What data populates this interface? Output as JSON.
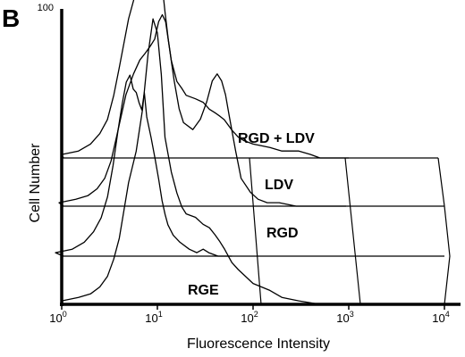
{
  "panel_letter": "B",
  "chart_data": {
    "type": "line",
    "style": "offset 3D stacked histograms",
    "xlabel": "Fluorescence Intensity",
    "ylabel": "Cell Number",
    "x_scale": "log",
    "xlim": [
      1,
      10000
    ],
    "ylim": [
      0,
      100
    ],
    "x_ticks": [
      {
        "base": "10",
        "exp": "0"
      },
      {
        "base": "10",
        "exp": "1"
      },
      {
        "base": "10",
        "exp": "2"
      },
      {
        "base": "10",
        "exp": "3"
      },
      {
        "base": "10",
        "exp": "4"
      }
    ],
    "y_max_label": "100",
    "grid": true,
    "series": [
      {
        "name": "RGE",
        "x": [
          1,
          1.5,
          2,
          2.5,
          3,
          3.5,
          4,
          4.5,
          5,
          5.5,
          6,
          6.5,
          7,
          7.5,
          8,
          8.5,
          9,
          10,
          11,
          12,
          13,
          14,
          15,
          17,
          20,
          25,
          30,
          35,
          40,
          50,
          60,
          70
        ],
        "counts": [
          1,
          2,
          4,
          7,
          11,
          17,
          26,
          36,
          44,
          50,
          52,
          48,
          47,
          44,
          42,
          47,
          40,
          34,
          28,
          22,
          16,
          12,
          9,
          6,
          4,
          2,
          1,
          2,
          1,
          0,
          0,
          0
        ]
      },
      {
        "name": "RGD",
        "x": [
          1,
          1.5,
          2,
          2.5,
          3,
          3.5,
          4,
          5,
          6,
          7,
          8,
          9,
          10,
          11,
          12,
          13,
          14,
          16,
          18,
          20,
          25,
          30,
          35,
          40,
          45,
          50,
          55,
          60,
          70,
          80,
          100,
          120,
          150,
          200,
          300,
          500,
          1000
        ],
        "counts": [
          1,
          2,
          3,
          5,
          8,
          13,
          20,
          32,
          38,
          42,
          44,
          46,
          48,
          53,
          55,
          53,
          47,
          36,
          28,
          24,
          22,
          25,
          30,
          36,
          38,
          36,
          32,
          26,
          16,
          8,
          4,
          2,
          1,
          1,
          0,
          0,
          0
        ]
      },
      {
        "name": "LDV",
        "x": [
          1,
          1.5,
          2,
          2.5,
          3,
          3.5,
          4,
          5,
          6,
          6.5,
          7,
          8,
          9,
          10,
          11,
          12,
          13,
          14,
          16,
          18,
          20,
          25,
          30,
          35,
          40,
          45,
          50,
          60,
          70,
          80,
          100,
          150,
          200,
          300,
          400,
          500,
          1000
        ],
        "counts": [
          1,
          2,
          4,
          7,
          11,
          18,
          26,
          40,
          48,
          54,
          50,
          60,
          64,
          60,
          52,
          42,
          34,
          28,
          22,
          20,
          18,
          17,
          16,
          14,
          13,
          12,
          11,
          8,
          6,
          5,
          4,
          3,
          2,
          2,
          1,
          0,
          0
        ]
      },
      {
        "name": "RGD + LDV",
        "x": [
          1,
          1.5,
          2,
          2.5,
          3,
          3.5,
          4,
          5,
          6,
          7,
          8,
          9,
          10,
          11,
          12,
          14,
          16,
          18,
          20,
          25,
          30,
          35,
          40,
          45,
          50,
          60,
          70,
          100,
          150,
          200,
          300,
          500,
          1000
        ],
        "counts": [
          1,
          2,
          3,
          5,
          8,
          13,
          19,
          35,
          44,
          56,
          72,
          82,
          78,
          66,
          48,
          38,
          32,
          28,
          26,
          25,
          23,
          22,
          20,
          18,
          16,
          12,
          10,
          6,
          4,
          2,
          1,
          0,
          0
        ]
      }
    ]
  }
}
